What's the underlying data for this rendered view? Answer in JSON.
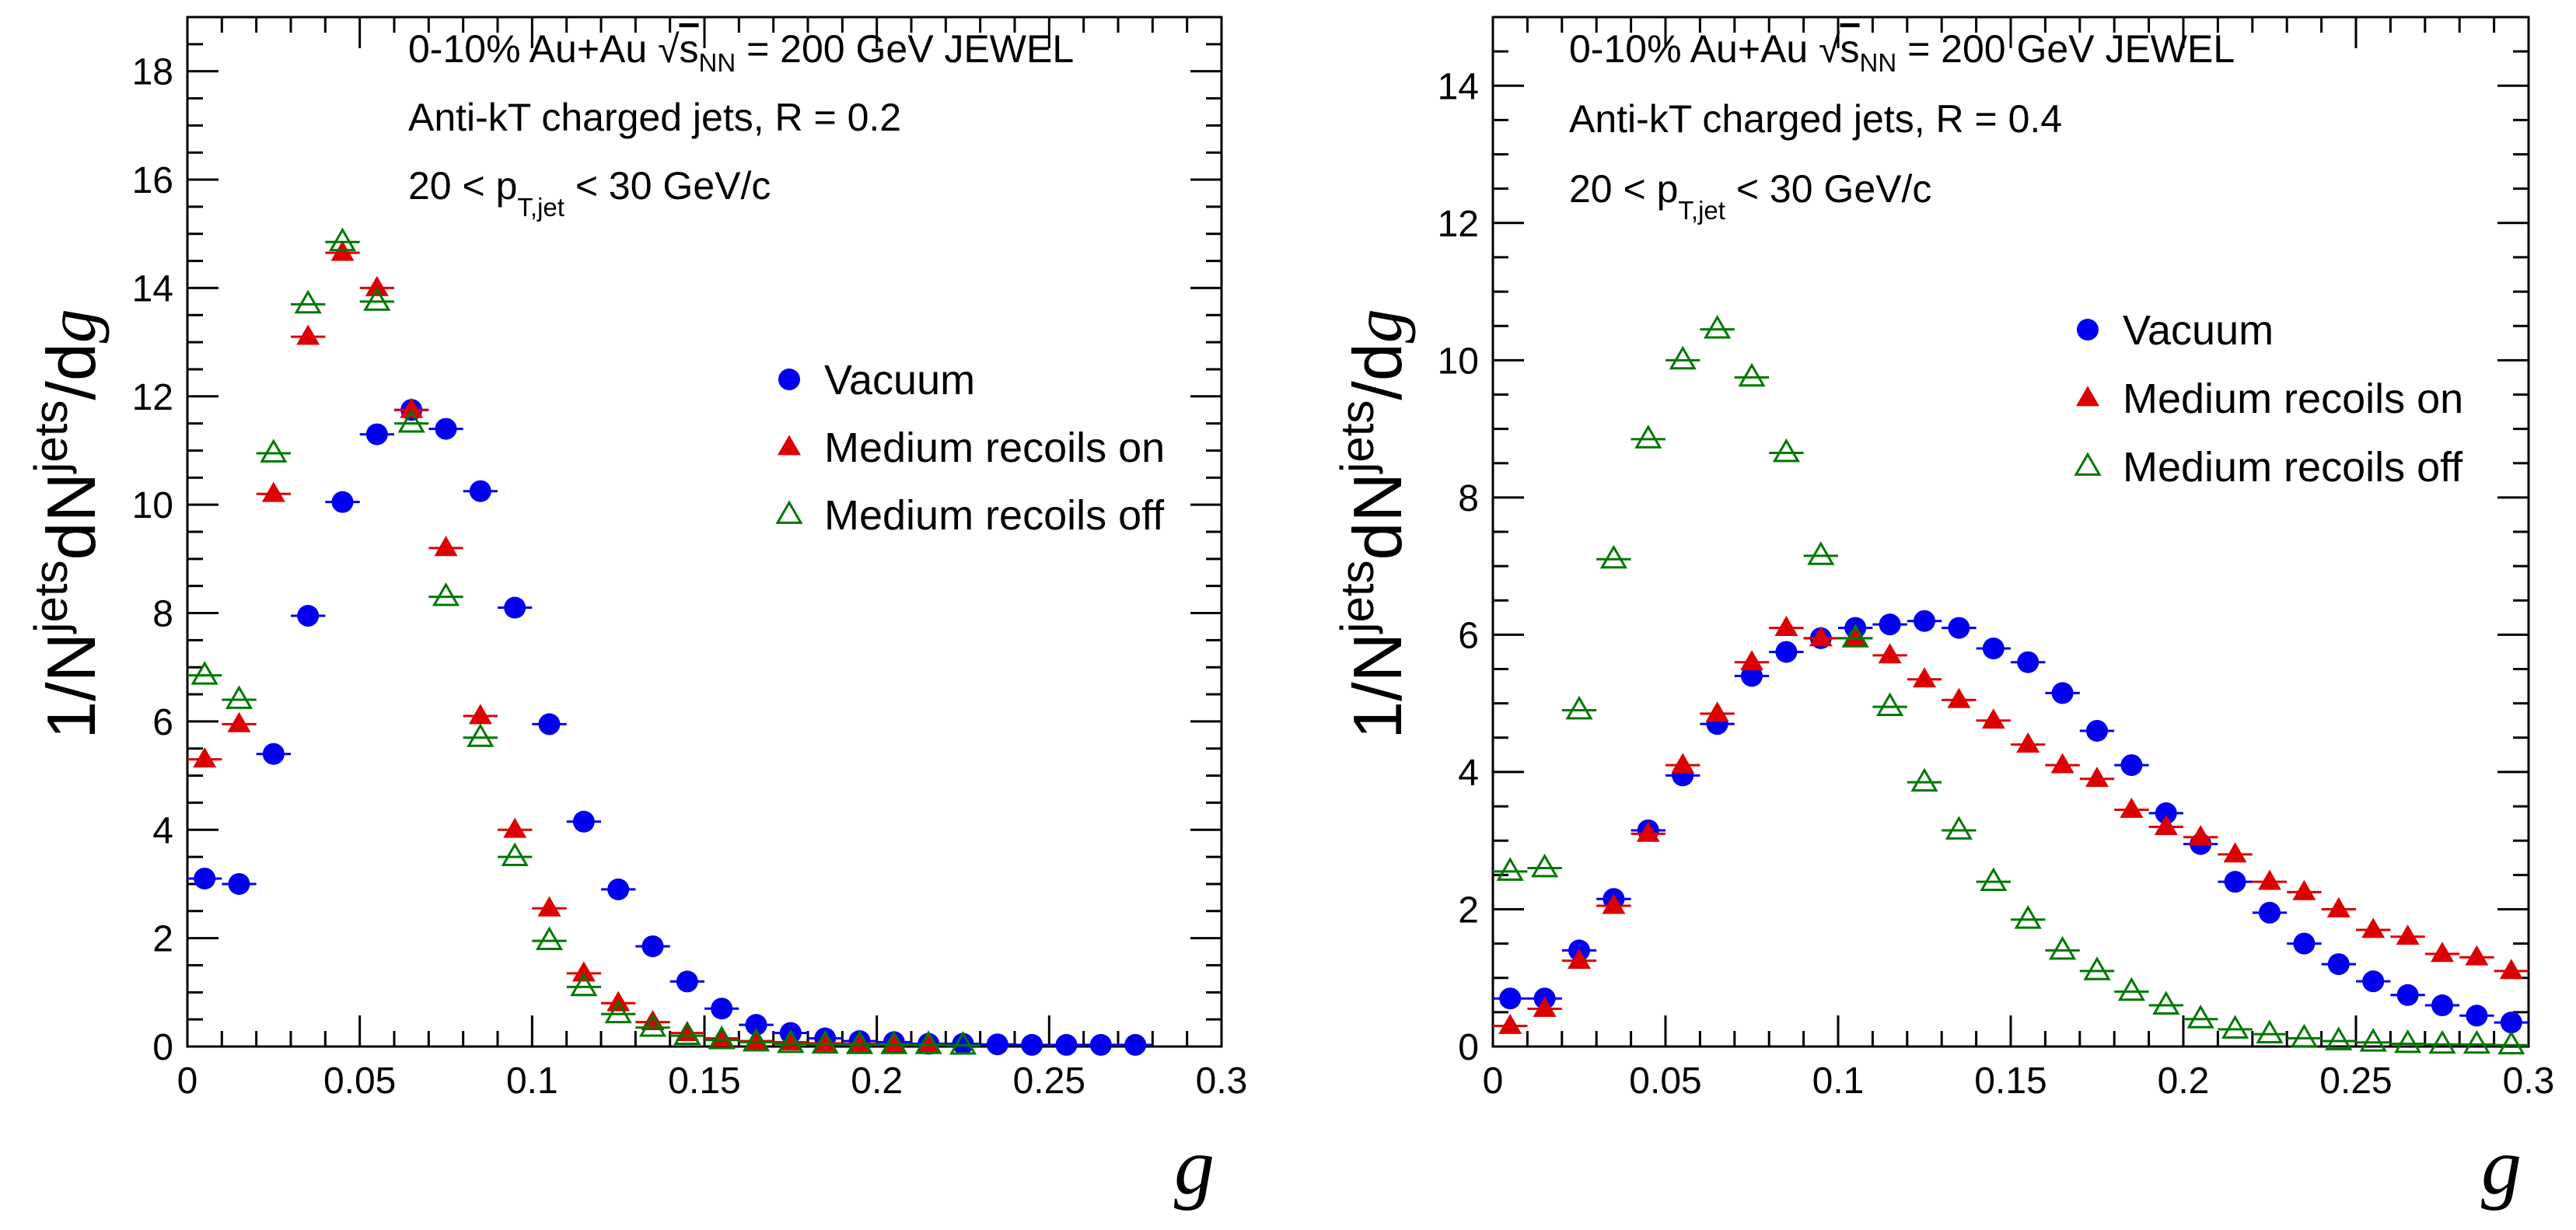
{
  "colors": {
    "vacuum": "#0000ee",
    "recoils_on": "#dd0000",
    "recoils_off": "#007700"
  },
  "chart_data": [
    {
      "type": "scatter",
      "annotations": {
        "line1_pre": "0-10% Au+Au",
        "line1_sqrt": "s",
        "line1_sub": "NN",
        "line1_post": "= 200 GeV  JEWEL",
        "line2": "Anti-kT charged jets, R = 0.2",
        "line3_pre": "20 < p",
        "line3_sub": "T,jet",
        "line3_post": "< 30 GeV/c"
      },
      "xlabel": "g",
      "ylabel": {
        "pre": "1/N",
        "sup1": "jets",
        "mid": "dN",
        "sup2": "jets",
        "post": "/d",
        "var": "g"
      },
      "xlim": [
        0,
        0.3
      ],
      "ylim": [
        0,
        19
      ],
      "x_ticks": [
        0,
        0.05,
        0.1,
        0.15,
        0.2,
        0.25,
        0.3
      ],
      "x_tick_labels": [
        "0",
        "0.05",
        "0.1",
        "0.15",
        "0.2",
        "0.25",
        "0.3"
      ],
      "y_ticks": [
        0,
        2,
        4,
        6,
        8,
        10,
        12,
        14,
        16,
        18
      ],
      "y_tick_labels": [
        "0",
        "2",
        "4",
        "6",
        "8",
        "10",
        "12",
        "14",
        "16",
        "18"
      ],
      "legend_position": "center-right",
      "series": [
        {
          "name": "Vacuum",
          "marker": "circle",
          "x": [
            0.005,
            0.015,
            0.025,
            0.035,
            0.045,
            0.055,
            0.065,
            0.075,
            0.085,
            0.095,
            0.105,
            0.115,
            0.125,
            0.135,
            0.145,
            0.155,
            0.165,
            0.175,
            0.185,
            0.195,
            0.205,
            0.215,
            0.225,
            0.235,
            0.245,
            0.255,
            0.265,
            0.275
          ],
          "y": [
            3.1,
            3.0,
            5.4,
            7.95,
            10.05,
            11.3,
            11.75,
            11.4,
            10.25,
            8.1,
            5.95,
            4.15,
            2.9,
            1.85,
            1.2,
            0.7,
            0.4,
            0.25,
            0.15,
            0.1,
            0.08,
            0.05,
            0.05,
            0.04,
            0.03,
            0.03,
            0.03,
            0.03
          ]
        },
        {
          "name": "Medium recoils on",
          "marker": "triangle-filled",
          "x": [
            0.005,
            0.015,
            0.025,
            0.035,
            0.045,
            0.055,
            0.065,
            0.075,
            0.085,
            0.095,
            0.105,
            0.115,
            0.125,
            0.135,
            0.145,
            0.155,
            0.165,
            0.175,
            0.185,
            0.195,
            0.205,
            0.215
          ],
          "y": [
            5.3,
            5.95,
            10.2,
            13.1,
            14.65,
            14.0,
            11.75,
            9.2,
            6.1,
            4.0,
            2.55,
            1.35,
            0.8,
            0.45,
            0.25,
            0.15,
            0.1,
            0.08,
            0.06,
            0.05,
            0.04,
            0.03
          ]
        },
        {
          "name": "Medium recoils off",
          "marker": "triangle-open",
          "x": [
            0.005,
            0.015,
            0.025,
            0.035,
            0.045,
            0.055,
            0.065,
            0.075,
            0.085,
            0.095,
            0.105,
            0.115,
            0.125,
            0.135,
            0.145,
            0.155,
            0.165,
            0.175,
            0.185,
            0.195,
            0.205,
            0.215,
            0.225
          ],
          "y": [
            6.85,
            6.4,
            10.95,
            13.7,
            14.85,
            13.75,
            11.5,
            8.3,
            5.7,
            3.5,
            1.95,
            1.1,
            0.6,
            0.35,
            0.2,
            0.12,
            0.08,
            0.05,
            0.04,
            0.03,
            0.03,
            0.03,
            0.02
          ]
        }
      ]
    },
    {
      "type": "scatter",
      "annotations": {
        "line1_pre": "0-10% Au+Au",
        "line1_sqrt": "s",
        "line1_sub": "NN",
        "line1_post": "= 200 GeV  JEWEL",
        "line2": "Anti-kT charged jets, R = 0.4",
        "line3_pre": "20 < p",
        "line3_sub": "T,jet",
        "line3_post": "< 30 GeV/c"
      },
      "xlabel": "g",
      "ylabel": {
        "pre": "1/N",
        "sup1": "jets",
        "mid": "dN",
        "sup2": "jets",
        "post": "/d",
        "var": "g"
      },
      "xlim": [
        0,
        0.3
      ],
      "ylim": [
        0,
        15
      ],
      "x_ticks": [
        0,
        0.05,
        0.1,
        0.15,
        0.2,
        0.25,
        0.3
      ],
      "x_tick_labels": [
        "0",
        "0.05",
        "0.1",
        "0.15",
        "0.2",
        "0.25",
        "0.3"
      ],
      "y_ticks": [
        0,
        2,
        4,
        6,
        8,
        10,
        12,
        14
      ],
      "y_tick_labels": [
        "0",
        "2",
        "4",
        "6",
        "8",
        "10",
        "12",
        "14"
      ],
      "legend_position": "top-right",
      "series": [
        {
          "name": "Vacuum",
          "marker": "circle",
          "x": [
            0.005,
            0.015,
            0.025,
            0.035,
            0.045,
            0.055,
            0.065,
            0.075,
            0.085,
            0.095,
            0.105,
            0.115,
            0.125,
            0.135,
            0.145,
            0.155,
            0.165,
            0.175,
            0.185,
            0.195,
            0.205,
            0.215,
            0.225,
            0.235,
            0.245,
            0.255,
            0.265,
            0.275,
            0.285,
            0.295
          ],
          "y": [
            0.7,
            0.7,
            1.4,
            2.15,
            3.15,
            3.95,
            4.7,
            5.4,
            5.75,
            5.95,
            6.1,
            6.15,
            6.2,
            6.1,
            5.8,
            5.6,
            5.15,
            4.6,
            4.1,
            3.4,
            2.95,
            2.4,
            1.95,
            1.5,
            1.2,
            0.95,
            0.75,
            0.6,
            0.45,
            0.35
          ]
        },
        {
          "name": "Medium recoils on",
          "marker": "triangle-filled",
          "x": [
            0.005,
            0.015,
            0.025,
            0.035,
            0.045,
            0.055,
            0.065,
            0.075,
            0.085,
            0.095,
            0.105,
            0.115,
            0.125,
            0.135,
            0.145,
            0.155,
            0.165,
            0.175,
            0.185,
            0.195,
            0.205,
            0.215,
            0.225,
            0.235,
            0.245,
            0.255,
            0.265,
            0.275,
            0.285,
            0.295
          ],
          "y": [
            0.3,
            0.55,
            1.25,
            2.05,
            3.1,
            4.1,
            4.85,
            5.6,
            6.1,
            5.95,
            5.95,
            5.7,
            5.35,
            5.05,
            4.75,
            4.4,
            4.1,
            3.9,
            3.45,
            3.2,
            3.05,
            2.8,
            2.4,
            2.25,
            2.0,
            1.7,
            1.6,
            1.35,
            1.3,
            1.1
          ]
        },
        {
          "name": "Medium recoils off",
          "marker": "triangle-open",
          "x": [
            0.005,
            0.015,
            0.025,
            0.035,
            0.045,
            0.055,
            0.065,
            0.075,
            0.085,
            0.095,
            0.105,
            0.115,
            0.125,
            0.135,
            0.145,
            0.155,
            0.165,
            0.175,
            0.185,
            0.195,
            0.205,
            0.215,
            0.225,
            0.235,
            0.245,
            0.255,
            0.265,
            0.275,
            0.285,
            0.295
          ],
          "y": [
            2.55,
            2.6,
            4.9,
            7.1,
            8.85,
            10.0,
            10.45,
            9.75,
            8.65,
            7.15,
            5.95,
            4.95,
            3.85,
            3.15,
            2.4,
            1.85,
            1.4,
            1.1,
            0.8,
            0.6,
            0.4,
            0.25,
            0.18,
            0.12,
            0.08,
            0.06,
            0.04,
            0.03,
            0.03,
            0.02
          ]
        }
      ]
    }
  ]
}
